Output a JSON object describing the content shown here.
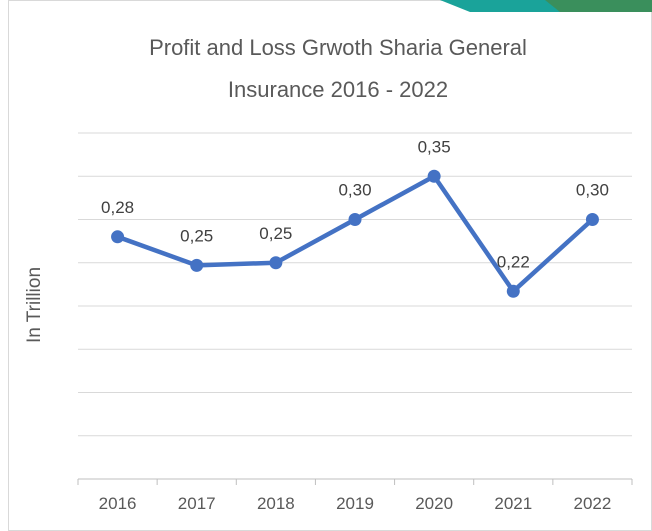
{
  "chart_data": {
    "type": "line",
    "title": "Profit and Loss Grwoth Sharia General Insurance 2016 - 2022",
    "y_label": "In Trillion",
    "categories": [
      "2016",
      "2017",
      "2018",
      "2019",
      "2020",
      "2021",
      "2022"
    ],
    "series": [
      {
        "name": "Profit and Loss",
        "color": "#4472c4",
        "values": [
          0.28,
          0.247,
          0.25,
          0.3,
          0.35,
          0.217,
          0.3
        ],
        "value_labels": [
          "0,28",
          "0,25",
          "0,25",
          "0,30",
          "0,35",
          "0,22",
          "0,30"
        ]
      }
    ],
    "ylim": [
      0,
      0.4
    ],
    "yticks": [
      0,
      0.05,
      0.1,
      0.15,
      0.2,
      0.25,
      0.3,
      0.35,
      0.4
    ],
    "grid": true
  }
}
